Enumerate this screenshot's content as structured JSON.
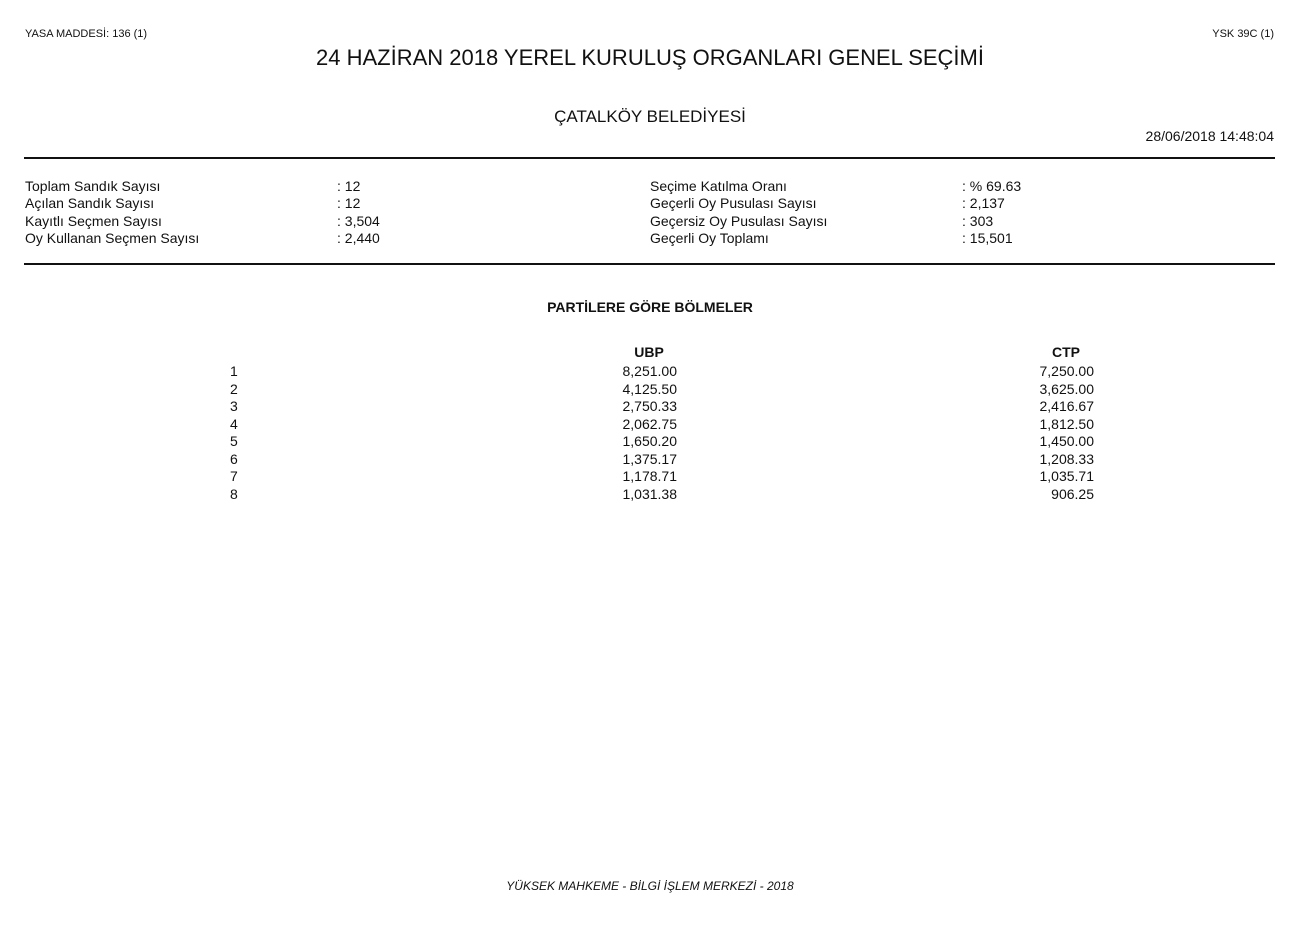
{
  "header": {
    "law_article": "YASA MADDESİ: 136 (1)",
    "form_code": "YSK 39C (1)",
    "title": "24 HAZİRAN 2018 YEREL KURULUŞ ORGANLARI GENEL SEÇİMİ",
    "subtitle": "ÇATALKÖY BELEDİYESİ",
    "timestamp": "28/06/2018 14:48:04"
  },
  "summary": {
    "left": [
      {
        "label": "Toplam Sandık Sayısı",
        "value": ": 12"
      },
      {
        "label": "Açılan Sandık Sayısı",
        "value": ": 12"
      },
      {
        "label": "Kayıtlı Seçmen Sayısı",
        "value": ": 3,504"
      },
      {
        "label": "Oy Kullanan Seçmen Sayısı",
        "value": ": 2,440"
      }
    ],
    "right": [
      {
        "label": "Seçime Katılma Oranı",
        "value": ": % 69.63"
      },
      {
        "label": "Geçerli Oy Pusulası Sayısı",
        "value": ": 2,137"
      },
      {
        "label": "Geçersiz Oy Pusulası Sayısı",
        "value": ": 303"
      },
      {
        "label": "Geçerli Oy Toplamı",
        "value": ": 15,501"
      }
    ]
  },
  "divisions": {
    "title": "PARTİLERE GÖRE BÖLMELER",
    "columns": [
      "UBP",
      "CTP"
    ],
    "rows": [
      {
        "n": "1",
        "values": [
          "8,251.00",
          "7,250.00"
        ]
      },
      {
        "n": "2",
        "values": [
          "4,125.50",
          "3,625.00"
        ]
      },
      {
        "n": "3",
        "values": [
          "2,750.33",
          "2,416.67"
        ]
      },
      {
        "n": "4",
        "values": [
          "2,062.75",
          "1,812.50"
        ]
      },
      {
        "n": "5",
        "values": [
          "1,650.20",
          "1,450.00"
        ]
      },
      {
        "n": "6",
        "values": [
          "1,375.17",
          "1,208.33"
        ]
      },
      {
        "n": "7",
        "values": [
          "1,178.71",
          "1,035.71"
        ]
      },
      {
        "n": "8",
        "values": [
          "1,031.38",
          "906.25"
        ]
      }
    ]
  },
  "footer": "YÜKSEK MAHKEME - BİLGİ İŞLEM MERKEZİ - 2018"
}
